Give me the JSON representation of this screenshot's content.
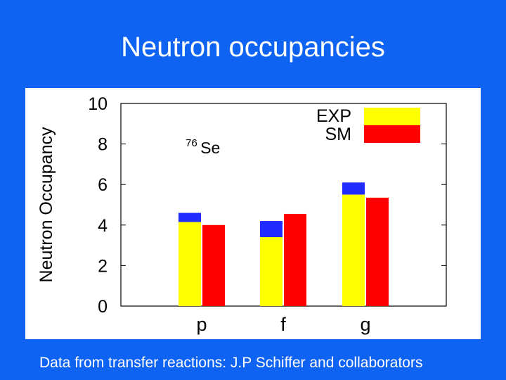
{
  "slide": {
    "title": "Neutron occupancies",
    "footnote": "Data from transfer reactions: J.P Schiffer and collaborators"
  },
  "colors": {
    "background": "#0f63f3",
    "exp": "#ffff00",
    "sm": "#ff0000",
    "uncertainty": "#1f2bff"
  },
  "chart_data": {
    "type": "bar",
    "title": "",
    "annotation": {
      "superscript": "76",
      "text": "Se"
    },
    "ylabel": "Neutron Occupancy",
    "xlabel": "",
    "ylim": [
      0,
      10
    ],
    "yticks": [
      0,
      2,
      4,
      6,
      8,
      10
    ],
    "categories": [
      "p",
      "f",
      "g"
    ],
    "series": [
      {
        "name": "EXP",
        "values": [
          4.15,
          3.4,
          5.5
        ],
        "error_upper": [
          4.6,
          4.2,
          6.1
        ]
      },
      {
        "name": "SM",
        "values": [
          4.0,
          4.55,
          5.35
        ]
      }
    ],
    "legend_position": "top-right",
    "grid": false
  }
}
